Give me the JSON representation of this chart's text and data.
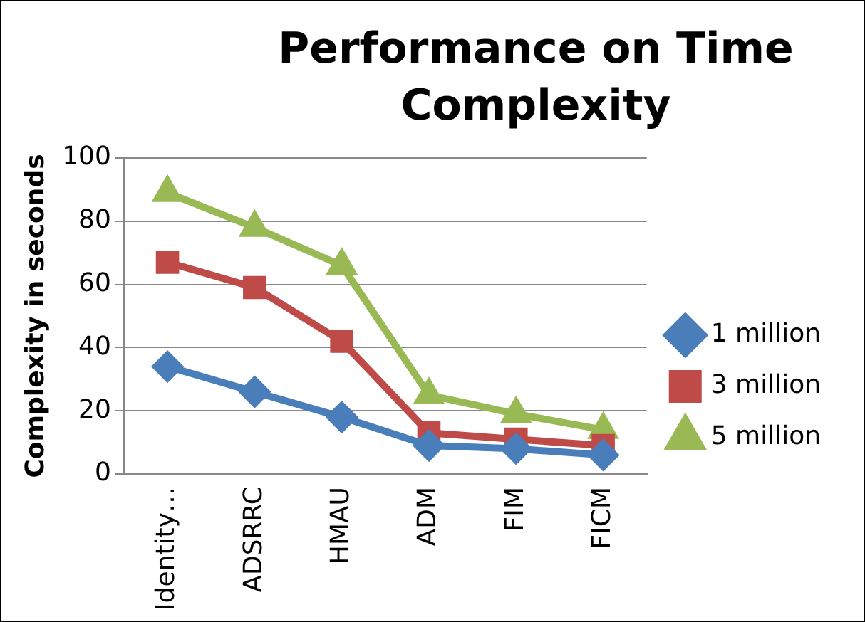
{
  "chart_data": {
    "type": "line",
    "title": "Performance on Time Complexity",
    "ylabel": "Complexity in seconds",
    "categories": [
      "Identity…",
      "ADSRRC",
      "HMAU",
      "ADM",
      "FIM",
      "FICM"
    ],
    "series": [
      {
        "name": "1 million",
        "color": "#4a7ebb",
        "marker": "diamond",
        "values": [
          34,
          26,
          18,
          9,
          8,
          6
        ]
      },
      {
        "name": "3 million",
        "color": "#be4b48",
        "marker": "square",
        "values": [
          67,
          59,
          42,
          13,
          11,
          9
        ]
      },
      {
        "name": "5 million",
        "color": "#98b954",
        "marker": "triangle",
        "values": [
          89,
          78,
          66,
          25,
          19,
          14
        ]
      }
    ],
    "ylim": [
      0,
      100
    ],
    "yticks": [
      0,
      20,
      40,
      60,
      80,
      100
    ],
    "grid": "y",
    "legend": "right",
    "line_style": "solid"
  }
}
